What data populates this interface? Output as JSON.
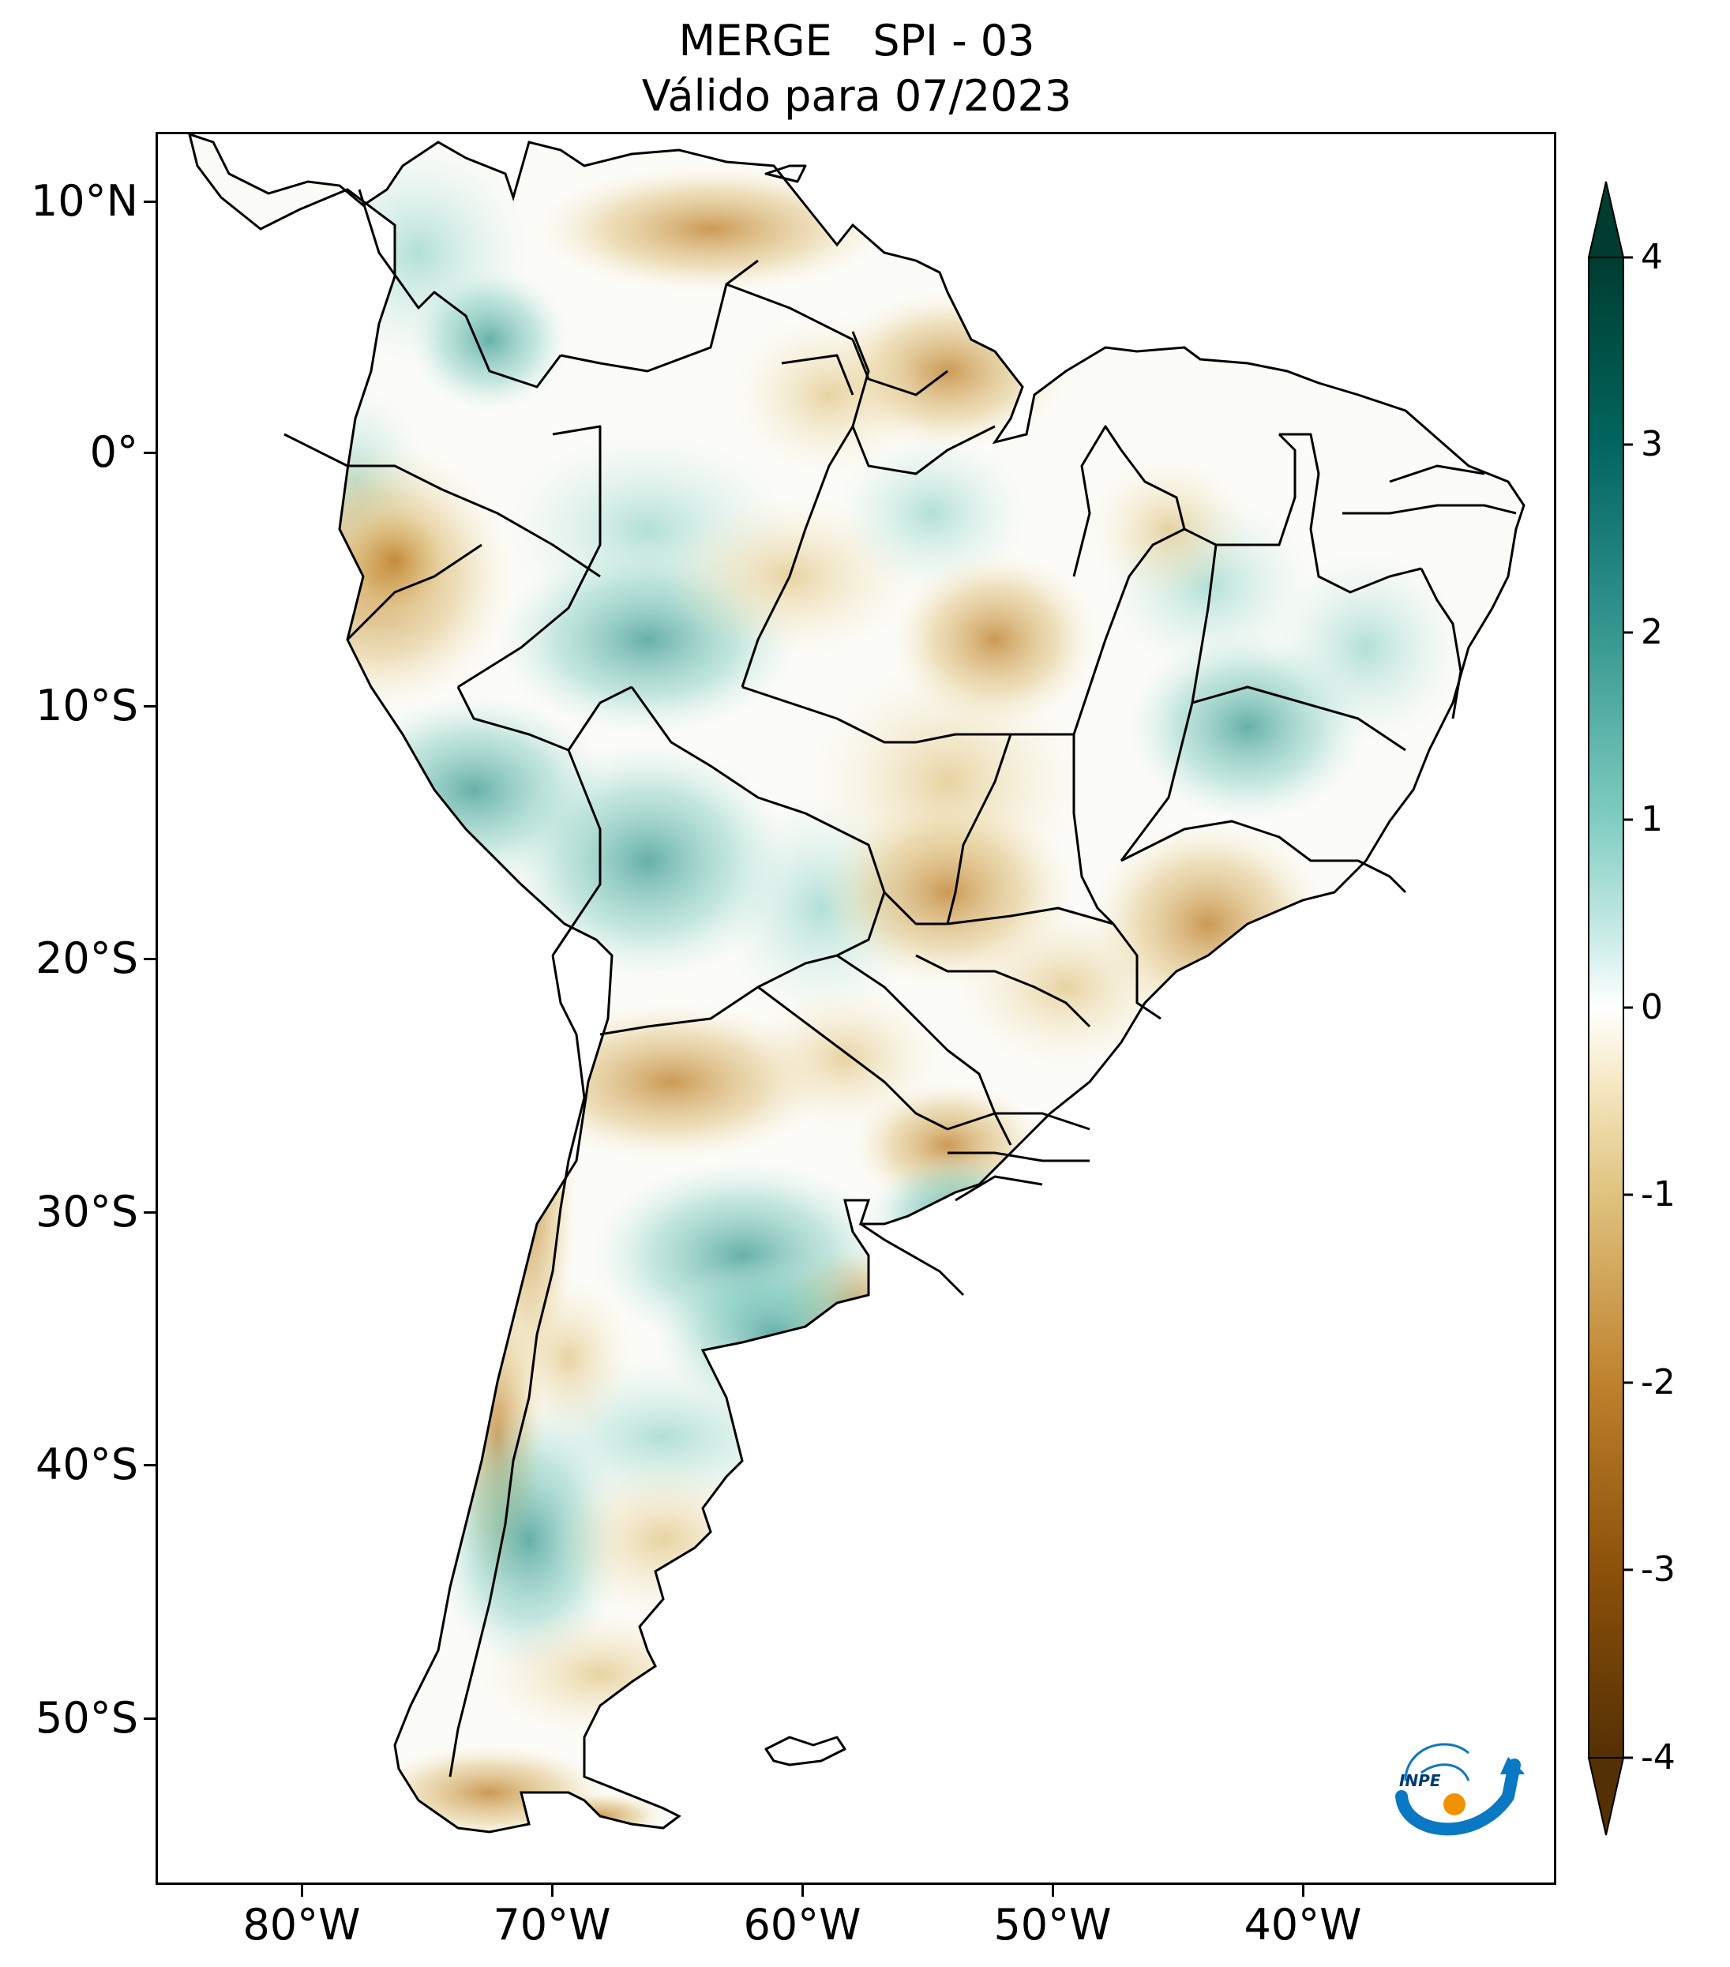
{
  "title": {
    "line1": "MERGE   SPI - 03",
    "line2": "Válido para 07/2023"
  },
  "axes": {
    "lat_labels": [
      "10°N",
      "0°",
      "10°S",
      "20°S",
      "30°S",
      "40°S",
      "50°S"
    ],
    "lon_labels": [
      "80°W",
      "70°W",
      "60°W",
      "50°W",
      "40°W"
    ]
  },
  "colorbar": {
    "labels": [
      "4",
      "3",
      "2",
      "1",
      "0",
      "-1",
      "-2",
      "-3",
      "-4"
    ],
    "range": [
      -4,
      4
    ],
    "extend": "both",
    "colors": {
      "dry_extreme": "#543005",
      "dry_strong": "#8c510a",
      "dry_moderate": "#bf812d",
      "dry_mild": "#dfc27d",
      "dry_light": "#f6e8c3",
      "neutral": "#ffffff",
      "wet_light": "#c7eae5",
      "wet_mild": "#80cdc1",
      "wet_moderate": "#35978f",
      "wet_strong": "#01665e",
      "wet_extreme": "#003c30"
    }
  },
  "map": {
    "region": "South America",
    "lon_range": [
      -85,
      -29
    ],
    "lat_range": [
      -56,
      13
    ],
    "frame_color": "#000000",
    "border_color": "#000000",
    "ocean_color": "#ffffff"
  },
  "logo": {
    "text": "INPE",
    "colors": {
      "arrow": "#0a78c2",
      "sun": "#f39200"
    }
  }
}
